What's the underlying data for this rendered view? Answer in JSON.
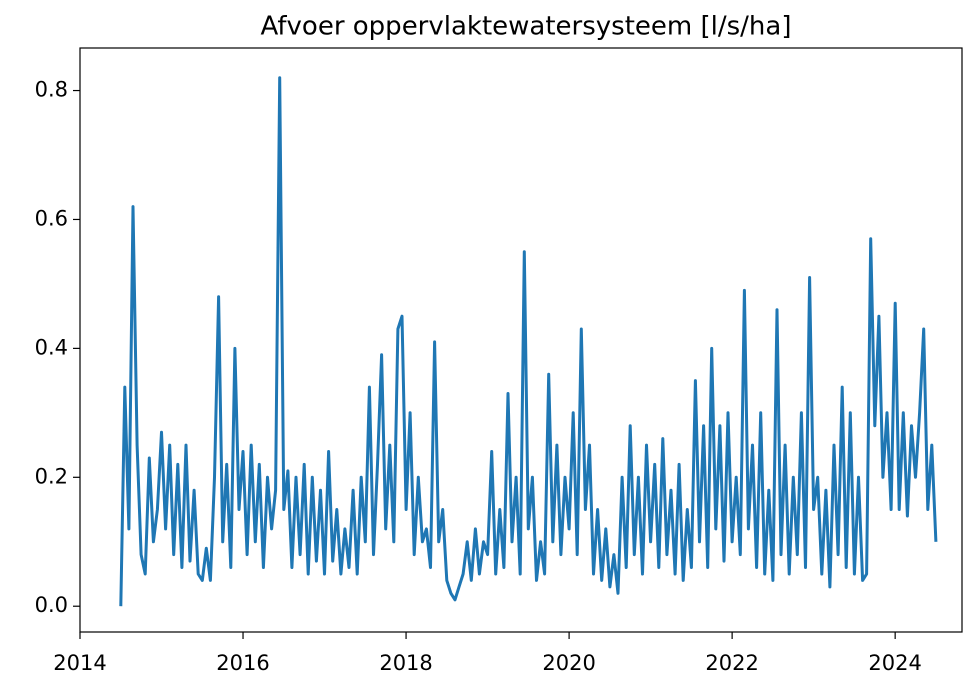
{
  "chart_data": {
    "type": "line",
    "title": "Afvoer oppervlaktewatersysteem [l/s/ha]",
    "color": "#1f77b4",
    "xlim": [
      2014,
      2024.82
    ],
    "xticks": [
      2014,
      2016,
      2018,
      2020,
      2022,
      2024
    ],
    "ylim": [
      -0.04,
      0.866
    ],
    "yticks": [
      {
        "value": 0,
        "label": "0.0"
      },
      0.2,
      0.4,
      0.6,
      0.8
    ],
    "x": [
      2014.5,
      2014.55,
      2014.6,
      2014.65,
      2014.7,
      2014.75,
      2014.8,
      2014.85,
      2014.9,
      2014.95,
      2015,
      2015.05,
      2015.1,
      2015.15,
      2015.2,
      2015.25,
      2015.3,
      2015.35,
      2015.4,
      2015.45,
      2015.5,
      2015.55,
      2015.6,
      2015.65,
      2015.7,
      2015.75,
      2015.8,
      2015.85,
      2015.9,
      2015.95,
      2016,
      2016.05,
      2016.1,
      2016.15,
      2016.2,
      2016.25,
      2016.3,
      2016.35,
      2016.4,
      2016.45,
      2016.5,
      2016.55,
      2016.6,
      2016.65,
      2016.7,
      2016.75,
      2016.8,
      2016.85,
      2016.9,
      2016.95,
      2017,
      2017.05,
      2017.1,
      2017.15,
      2017.2,
      2017.25,
      2017.3,
      2017.35,
      2017.4,
      2017.45,
      2017.5,
      2017.55,
      2017.6,
      2017.65,
      2017.7,
      2017.75,
      2017.8,
      2017.85,
      2017.9,
      2017.95,
      2018,
      2018.05,
      2018.1,
      2018.15,
      2018.2,
      2018.25,
      2018.3,
      2018.35,
      2018.4,
      2018.45,
      2018.5,
      2018.55,
      2018.6,
      2018.65,
      2018.7,
      2018.75,
      2018.8,
      2018.85,
      2018.9,
      2018.95,
      2019,
      2019.05,
      2019.1,
      2019.15,
      2019.2,
      2019.25,
      2019.3,
      2019.35,
      2019.4,
      2019.45,
      2019.5,
      2019.55,
      2019.6,
      2019.65,
      2019.7,
      2019.75,
      2019.8,
      2019.85,
      2019.9,
      2019.95,
      2020,
      2020.05,
      2020.1,
      2020.15,
      2020.2,
      2020.25,
      2020.3,
      2020.35,
      2020.4,
      2020.45,
      2020.5,
      2020.55,
      2020.6,
      2020.65,
      2020.7,
      2020.75,
      2020.8,
      2020.85,
      2020.9,
      2020.95,
      2021,
      2021.05,
      2021.1,
      2021.15,
      2021.2,
      2021.25,
      2021.3,
      2021.35,
      2021.4,
      2021.45,
      2021.5,
      2021.55,
      2021.6,
      2021.65,
      2021.7,
      2021.75,
      2021.8,
      2021.85,
      2021.9,
      2021.95,
      2022,
      2022.05,
      2022.1,
      2022.15,
      2022.2,
      2022.25,
      2022.3,
      2022.35,
      2022.4,
      2022.45,
      2022.5,
      2022.55,
      2022.6,
      2022.65,
      2022.7,
      2022.75,
      2022.8,
      2022.85,
      2022.9,
      2022.95,
      2023,
      2023.05,
      2023.1,
      2023.15,
      2023.2,
      2023.25,
      2023.3,
      2023.35,
      2023.4,
      2023.45,
      2023.5,
      2023.55,
      2023.6,
      2023.65,
      2023.7,
      2023.75,
      2023.8,
      2023.85,
      2023.9,
      2023.95,
      2024,
      2024.05,
      2024.1,
      2024.15,
      2024.2,
      2024.25,
      2024.3,
      2024.35,
      2024.4,
      2024.45,
      2024.5
    ],
    "values": [
      0.0,
      0.34,
      0.12,
      0.62,
      0.25,
      0.08,
      0.05,
      0.23,
      0.1,
      0.15,
      0.27,
      0.12,
      0.25,
      0.08,
      0.22,
      0.06,
      0.25,
      0.07,
      0.18,
      0.05,
      0.04,
      0.09,
      0.04,
      0.2,
      0.48,
      0.1,
      0.22,
      0.06,
      0.4,
      0.15,
      0.24,
      0.08,
      0.25,
      0.1,
      0.22,
      0.06,
      0.2,
      0.12,
      0.18,
      0.82,
      0.15,
      0.21,
      0.06,
      0.2,
      0.08,
      0.22,
      0.05,
      0.2,
      0.07,
      0.18,
      0.05,
      0.24,
      0.07,
      0.15,
      0.05,
      0.12,
      0.06,
      0.18,
      0.05,
      0.2,
      0.1,
      0.34,
      0.08,
      0.22,
      0.39,
      0.12,
      0.25,
      0.1,
      0.43,
      0.45,
      0.15,
      0.3,
      0.08,
      0.2,
      0.1,
      0.12,
      0.06,
      0.41,
      0.1,
      0.15,
      0.04,
      0.02,
      0.01,
      0.03,
      0.05,
      0.1,
      0.04,
      0.12,
      0.05,
      0.1,
      0.08,
      0.24,
      0.05,
      0.15,
      0.06,
      0.33,
      0.1,
      0.2,
      0.05,
      0.55,
      0.12,
      0.2,
      0.04,
      0.1,
      0.05,
      0.36,
      0.1,
      0.25,
      0.08,
      0.2,
      0.12,
      0.3,
      0.08,
      0.43,
      0.15,
      0.25,
      0.05,
      0.15,
      0.04,
      0.12,
      0.03,
      0.08,
      0.02,
      0.2,
      0.06,
      0.28,
      0.08,
      0.2,
      0.05,
      0.25,
      0.1,
      0.22,
      0.06,
      0.26,
      0.08,
      0.18,
      0.05,
      0.22,
      0.04,
      0.15,
      0.06,
      0.35,
      0.1,
      0.28,
      0.06,
      0.4,
      0.12,
      0.28,
      0.07,
      0.3,
      0.1,
      0.2,
      0.08,
      0.49,
      0.12,
      0.25,
      0.06,
      0.3,
      0.05,
      0.18,
      0.04,
      0.46,
      0.08,
      0.25,
      0.05,
      0.2,
      0.08,
      0.3,
      0.06,
      0.51,
      0.15,
      0.2,
      0.05,
      0.18,
      0.03,
      0.25,
      0.08,
      0.34,
      0.06,
      0.3,
      0.05,
      0.2,
      0.04,
      0.05,
      0.57,
      0.28,
      0.45,
      0.2,
      0.3,
      0.15,
      0.47,
      0.15,
      0.3,
      0.14,
      0.28,
      0.2,
      0.3,
      0.43,
      0.15,
      0.25,
      0.1
    ]
  }
}
